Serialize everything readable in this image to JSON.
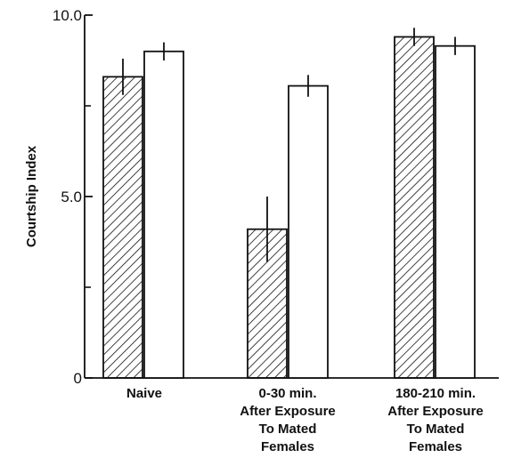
{
  "chart_data": {
    "type": "bar",
    "ylabel": "Courtship Index",
    "xlabel": "",
    "title": "",
    "ylim": [
      0,
      10
    ],
    "yticks_labeled": [
      "0",
      "5.0",
      "10.0"
    ],
    "yticks_minor": [
      2.5,
      7.5
    ],
    "categories": [
      [
        "Naive"
      ],
      [
        "0-30 min.",
        "After Exposure",
        "To Mated",
        "Females"
      ],
      [
        "180-210 min.",
        "After Exposure",
        "To Mated",
        "Females"
      ]
    ],
    "series": [
      {
        "fill": "hatched",
        "values": [
          8.3,
          4.1,
          9.4
        ],
        "errors": [
          0.5,
          0.9,
          0.25
        ]
      },
      {
        "fill": "open",
        "values": [
          9.0,
          8.05,
          9.15
        ],
        "errors": [
          0.25,
          0.3,
          0.25
        ]
      }
    ],
    "grid": false,
    "legend": "none"
  }
}
